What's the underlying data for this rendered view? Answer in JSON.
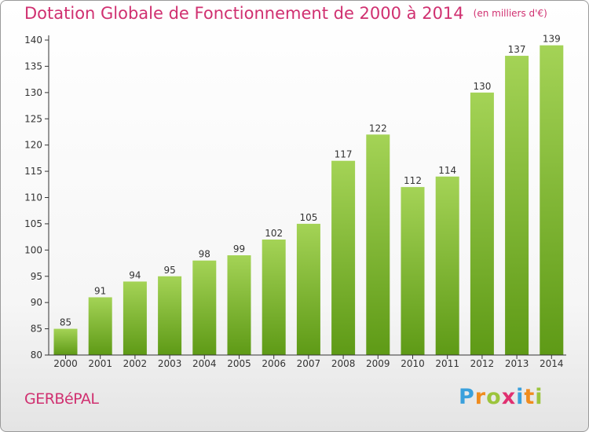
{
  "header": {
    "title": "Dotation Globale de Fonctionnement de 2000 à 2014",
    "subtitle": "(en milliers d'€)"
  },
  "footer": {
    "commune": "GERBéPAL",
    "logo_text": "Proxiti"
  },
  "colors": {
    "title": "#d03070",
    "bar_light": "#a4d356",
    "bar_dark": "#5e9a16",
    "axis": "#333333"
  },
  "chart_data": {
    "type": "bar",
    "title": "Dotation Globale de Fonctionnement de 2000 à 2014",
    "subtitle": "(en milliers d'€)",
    "xlabel": "",
    "ylabel": "",
    "categories": [
      "2000",
      "2001",
      "2002",
      "2003",
      "2004",
      "2005",
      "2006",
      "2007",
      "2008",
      "2009",
      "2010",
      "2011",
      "2012",
      "2013",
      "2014"
    ],
    "values": [
      85,
      91,
      94,
      95,
      98,
      99,
      102,
      105,
      117,
      122,
      112,
      114,
      130,
      137,
      139
    ],
    "ylim": [
      80,
      140
    ],
    "yticks": [
      80,
      85,
      90,
      95,
      100,
      105,
      110,
      115,
      120,
      125,
      130,
      135,
      140
    ],
    "grid": false,
    "data_labels": true
  }
}
